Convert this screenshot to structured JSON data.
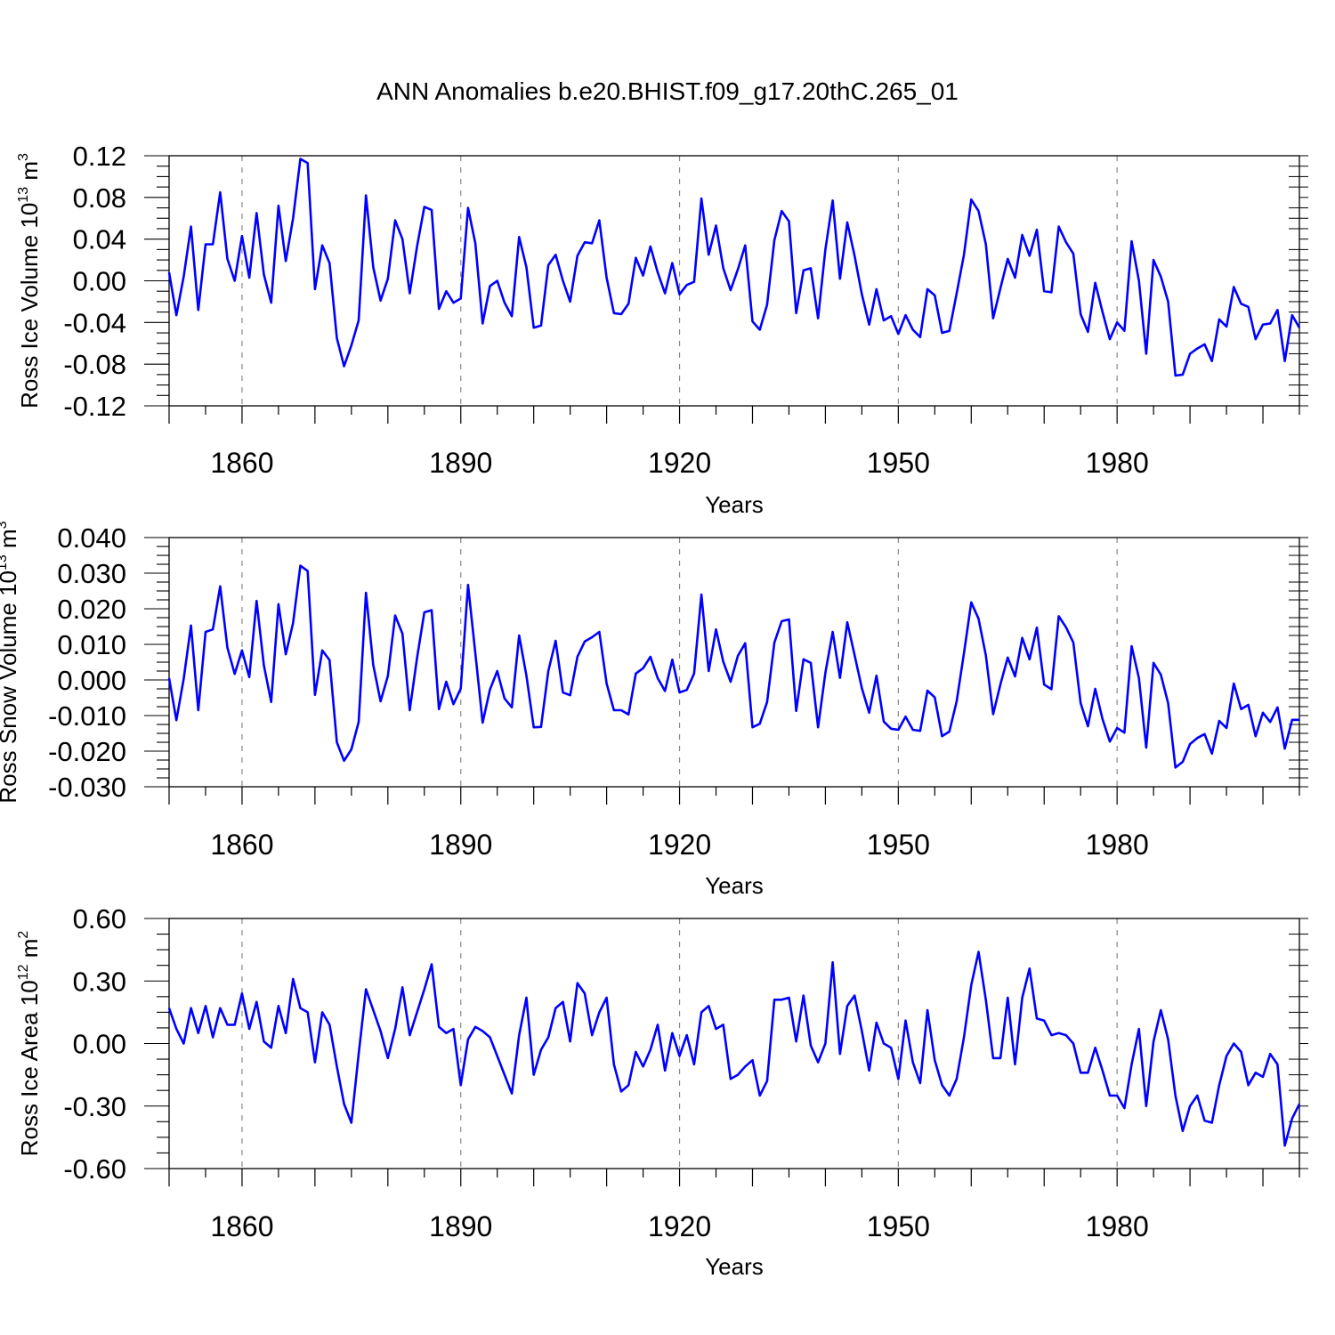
{
  "title": "ANN Anomalies b.e20.BHIST.f09_g17.20thC.265_01",
  "line_color": "#0000ff",
  "chart_data": [
    {
      "type": "line",
      "ylabel": "Ross Ice Volume",
      "unit_base": "10",
      "unit_exp": "13",
      "unit_sym": "m",
      "unit_sym_exp": "3",
      "xlabel": "Years",
      "xlim": [
        1850,
        2005
      ],
      "xticks": [
        1860,
        1890,
        1920,
        1950,
        1980
      ],
      "xtick_labels": [
        "1860",
        "1890",
        "1920",
        "1950",
        "1980"
      ],
      "ylim": [
        -0.12,
        0.12
      ],
      "yticks": [
        -0.12,
        -0.08,
        -0.04,
        0.0,
        0.04,
        0.08,
        0.12
      ],
      "ytick_labels": [
        "-0.12",
        "-0.08",
        "-0.04",
        "0.00",
        "0.04",
        "0.08",
        "0.12"
      ],
      "x_start": 1850,
      "series": [
        {
          "name": "Ross Ice Volume anomaly",
          "values": [
            0.008,
            -0.033,
            0.004,
            0.052,
            -0.028,
            0.035,
            0.035,
            0.085,
            0.021,
            0.0,
            0.043,
            0.003,
            0.065,
            0.006,
            -0.021,
            0.072,
            0.019,
            0.06,
            0.117,
            0.113,
            -0.008,
            0.034,
            0.017,
            -0.055,
            -0.082,
            -0.062,
            -0.038,
            0.082,
            0.013,
            -0.019,
            0.002,
            0.058,
            0.04,
            -0.012,
            0.033,
            0.071,
            0.068,
            -0.027,
            -0.01,
            -0.021,
            -0.017,
            0.07,
            0.036,
            -0.041,
            -0.005,
            0.0,
            -0.021,
            -0.034,
            0.042,
            0.013,
            -0.045,
            -0.043,
            0.015,
            0.025,
            0.0,
            -0.02,
            0.024,
            0.037,
            0.036,
            0.058,
            0.003,
            -0.031,
            -0.032,
            -0.022,
            0.022,
            0.005,
            0.033,
            0.008,
            -0.012,
            0.017,
            -0.013,
            -0.004,
            -0.001,
            0.079,
            0.025,
            0.053,
            0.012,
            -0.009,
            0.011,
            0.034,
            -0.039,
            -0.047,
            -0.023,
            0.039,
            0.067,
            0.057,
            -0.031,
            0.01,
            0.012,
            -0.036,
            0.03,
            0.077,
            0.002,
            0.056,
            0.024,
            -0.013,
            -0.042,
            -0.008,
            -0.038,
            -0.034,
            -0.051,
            -0.033,
            -0.047,
            -0.054,
            -0.008,
            -0.014,
            -0.05,
            -0.048,
            -0.012,
            0.025,
            0.078,
            0.067,
            0.035,
            -0.036,
            -0.007,
            0.021,
            0.003,
            0.044,
            0.024,
            0.049,
            -0.01,
            -0.011,
            0.052,
            0.037,
            0.026,
            -0.032,
            -0.049,
            -0.002,
            -0.03,
            -0.056,
            -0.04,
            -0.048,
            0.038,
            0.0,
            -0.07,
            0.02,
            0.004,
            -0.02,
            -0.091,
            -0.09,
            -0.07,
            -0.065,
            -0.061,
            -0.077,
            -0.037,
            -0.044,
            -0.006,
            -0.022,
            -0.025,
            -0.056,
            -0.042,
            -0.041,
            -0.028,
            -0.077,
            -0.033,
            -0.045
          ]
        }
      ]
    },
    {
      "type": "line",
      "ylabel": "Ross Snow Volume",
      "unit_base": "10",
      "unit_exp": "13",
      "unit_sym": "m",
      "unit_sym_exp": "3",
      "xlabel": "Years",
      "xlim": [
        1850,
        2005
      ],
      "xticks": [
        1860,
        1890,
        1920,
        1950,
        1980
      ],
      "xtick_labels": [
        "1860",
        "1890",
        "1920",
        "1950",
        "1980"
      ],
      "ylim": [
        -0.03,
        0.04
      ],
      "yticks": [
        -0.03,
        -0.02,
        -0.01,
        0.0,
        0.01,
        0.02,
        0.03,
        0.04
      ],
      "ytick_labels": [
        "-0.030",
        "-0.020",
        "-0.010",
        "0.000",
        "0.010",
        "0.020",
        "0.030",
        "0.040"
      ],
      "x_start": 1850,
      "series": [
        {
          "name": "Ross Snow Volume anomaly",
          "values": [
            0.0005,
            -0.0113,
            0.0003,
            0.0153,
            -0.0085,
            0.0135,
            0.0142,
            0.0263,
            0.0091,
            0.0017,
            0.0083,
            0.0008,
            0.0222,
            0.0041,
            -0.0062,
            0.0213,
            0.0072,
            0.016,
            0.0321,
            0.0306,
            -0.0042,
            0.0083,
            0.0056,
            -0.0175,
            -0.0227,
            -0.0195,
            -0.0118,
            0.0245,
            0.0042,
            -0.006,
            0.0011,
            0.0181,
            0.013,
            -0.0085,
            0.0062,
            0.019,
            0.0196,
            -0.0082,
            -0.0005,
            -0.0068,
            -0.0024,
            0.0267,
            0.0075,
            -0.012,
            -0.0027,
            0.0025,
            -0.0052,
            -0.0077,
            0.0125,
            0.0012,
            -0.0133,
            -0.0132,
            0.0025,
            0.011,
            -0.0035,
            -0.0043,
            0.0065,
            0.0108,
            0.012,
            0.0135,
            -0.001,
            -0.0085,
            -0.0085,
            -0.0097,
            0.0018,
            0.0033,
            0.0065,
            0.0005,
            -0.0031,
            0.0057,
            -0.0035,
            -0.0028,
            0.0018,
            0.024,
            0.0025,
            0.0142,
            0.0051,
            -0.0005,
            0.0068,
            0.0103,
            -0.0133,
            -0.0123,
            -0.0062,
            0.0105,
            0.0165,
            0.017,
            -0.0087,
            0.0058,
            0.0048,
            -0.0133,
            0.002,
            0.0135,
            0.0006,
            0.0162,
            0.007,
            -0.0023,
            -0.0092,
            0.0012,
            -0.0117,
            -0.0137,
            -0.014,
            -0.0103,
            -0.014,
            -0.0143,
            -0.003,
            -0.0049,
            -0.0158,
            -0.0145,
            -0.006,
            0.0075,
            0.0218,
            0.0172,
            0.0069,
            -0.0096,
            -0.0012,
            0.0063,
            0.001,
            0.0118,
            0.0058,
            0.0147,
            -0.0013,
            -0.0026,
            0.0179,
            0.0148,
            0.0105,
            -0.0065,
            -0.013,
            -0.0025,
            -0.011,
            -0.0173,
            -0.0135,
            -0.0148,
            0.0095,
            0.0005,
            -0.019,
            0.0048,
            0.0015,
            -0.0065,
            -0.0246,
            -0.023,
            -0.018,
            -0.0163,
            -0.0152,
            -0.0207,
            -0.0115,
            -0.0135,
            -0.001,
            -0.0082,
            -0.007,
            -0.0158,
            -0.0092,
            -0.0118,
            -0.0077,
            -0.0193,
            -0.0112,
            -0.0112
          ]
        }
      ]
    },
    {
      "type": "line",
      "ylabel": "Ross Ice Area",
      "unit_base": "10",
      "unit_exp": "12",
      "unit_sym": "m",
      "unit_sym_exp": "2",
      "xlabel": "Years",
      "xlim": [
        1850,
        2005
      ],
      "xticks": [
        1860,
        1890,
        1920,
        1950,
        1980
      ],
      "xtick_labels": [
        "1860",
        "1890",
        "1920",
        "1950",
        "1980"
      ],
      "ylim": [
        -0.6,
        0.6
      ],
      "yticks": [
        -0.6,
        -0.3,
        0.0,
        0.3,
        0.6
      ],
      "ytick_labels": [
        "-0.60",
        "-0.30",
        "0.00",
        "0.30",
        "0.60"
      ],
      "x_start": 1850,
      "series": [
        {
          "name": "Ross Ice Area anomaly",
          "values": [
            0.17,
            0.07,
            0.0,
            0.17,
            0.05,
            0.18,
            0.03,
            0.17,
            0.09,
            0.09,
            0.24,
            0.07,
            0.2,
            0.01,
            -0.02,
            0.18,
            0.05,
            0.31,
            0.17,
            0.15,
            -0.09,
            0.15,
            0.09,
            -0.11,
            -0.29,
            -0.38,
            -0.05,
            0.26,
            0.16,
            0.06,
            -0.07,
            0.07,
            0.27,
            0.04,
            0.15,
            0.26,
            0.38,
            0.08,
            0.05,
            0.07,
            -0.2,
            0.02,
            0.08,
            0.06,
            0.03,
            -0.06,
            -0.15,
            -0.24,
            0.04,
            0.22,
            -0.15,
            -0.03,
            0.03,
            0.17,
            0.2,
            0.01,
            0.29,
            0.24,
            0.04,
            0.15,
            0.22,
            -0.1,
            -0.23,
            -0.2,
            -0.04,
            -0.11,
            -0.03,
            0.09,
            -0.13,
            0.05,
            -0.06,
            0.04,
            -0.1,
            0.15,
            0.18,
            0.07,
            0.09,
            -0.17,
            -0.15,
            -0.11,
            -0.08,
            -0.25,
            -0.18,
            0.21,
            0.21,
            0.22,
            0.01,
            0.23,
            -0.01,
            -0.09,
            0.0,
            0.39,
            -0.05,
            0.18,
            0.23,
            0.06,
            -0.13,
            0.1,
            0.0,
            -0.02,
            -0.17,
            0.11,
            -0.09,
            -0.19,
            0.16,
            -0.08,
            -0.2,
            -0.25,
            -0.17,
            0.03,
            0.28,
            0.44,
            0.21,
            -0.07,
            -0.07,
            0.22,
            -0.1,
            0.22,
            0.36,
            0.12,
            0.11,
            0.04,
            0.05,
            0.04,
            0.0,
            -0.14,
            -0.14,
            -0.02,
            -0.13,
            -0.25,
            -0.25,
            -0.31,
            -0.1,
            0.07,
            -0.3,
            0.01,
            0.16,
            0.02,
            -0.25,
            -0.42,
            -0.3,
            -0.25,
            -0.37,
            -0.38,
            -0.2,
            -0.06,
            0.0,
            -0.04,
            -0.2,
            -0.14,
            -0.16,
            -0.05,
            -0.1,
            -0.49,
            -0.36,
            -0.29
          ]
        }
      ]
    }
  ]
}
